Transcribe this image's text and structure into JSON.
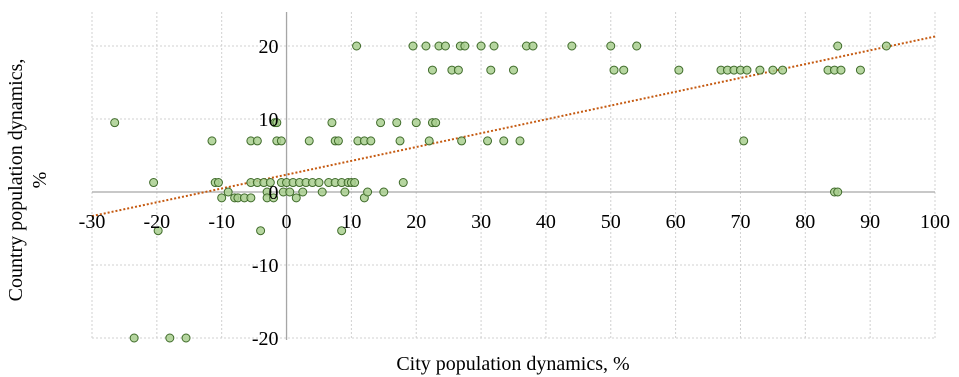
{
  "chart_data": {
    "type": "scatter",
    "title": "",
    "xlabel": "City population dynamics, %",
    "ylabel": "Country population dynamics, %",
    "xlim": [
      -30,
      100
    ],
    "ylim": [
      -20,
      25
    ],
    "x_ticks": [
      "-30",
      "-20",
      "-10",
      "0",
      "10",
      "20",
      "30",
      "40",
      "50",
      "60",
      "70",
      "80",
      "90",
      "100"
    ],
    "y_ticks": [
      "20",
      "10",
      "0",
      "-10",
      "-20"
    ],
    "grid": true,
    "marker_fill": "#a9cf8f",
    "marker_edge": "#3f6b2a",
    "trendline_color": "#c55a11",
    "series": [
      {
        "points": [
          [
            -26.5,
            9.5
          ],
          [
            -20.5,
            1.3
          ],
          [
            -19.8,
            -5.3
          ],
          [
            -23.5,
            -20.0
          ],
          [
            -18.0,
            -20.0
          ],
          [
            -15.5,
            -20.0
          ],
          [
            -11.5,
            7.0
          ],
          [
            -11.0,
            1.3
          ],
          [
            -10.5,
            1.3
          ],
          [
            -10.0,
            -0.8
          ],
          [
            -9.0,
            0.0
          ],
          [
            -8.0,
            -0.8
          ],
          [
            -7.5,
            -0.8
          ],
          [
            -6.5,
            -0.8
          ],
          [
            -5.5,
            -0.8
          ],
          [
            -5.5,
            7.0
          ],
          [
            -4.5,
            7.0
          ],
          [
            -5.5,
            1.3
          ],
          [
            -4.5,
            1.3
          ],
          [
            -4.0,
            -5.3
          ],
          [
            -3.5,
            1.3
          ],
          [
            -3.0,
            0.0
          ],
          [
            -3.0,
            -0.8
          ],
          [
            -2.5,
            1.3
          ],
          [
            -2.0,
            -0.8
          ],
          [
            -1.8,
            9.5
          ],
          [
            -1.5,
            9.5
          ],
          [
            -1.5,
            7.0
          ],
          [
            -0.8,
            7.0
          ],
          [
            -0.8,
            1.3
          ],
          [
            -0.5,
            0.0
          ],
          [
            0.0,
            1.3
          ],
          [
            0.5,
            0.0
          ],
          [
            1.0,
            1.3
          ],
          [
            1.5,
            -0.8
          ],
          [
            2.0,
            1.3
          ],
          [
            2.5,
            0.0
          ],
          [
            3.0,
            1.3
          ],
          [
            3.5,
            7.0
          ],
          [
            4.0,
            1.3
          ],
          [
            5.0,
            1.3
          ],
          [
            5.5,
            0.0
          ],
          [
            6.5,
            1.3
          ],
          [
            7.0,
            9.5
          ],
          [
            7.5,
            1.3
          ],
          [
            7.5,
            7.0
          ],
          [
            8.0,
            7.0
          ],
          [
            8.5,
            1.3
          ],
          [
            8.5,
            -5.3
          ],
          [
            9.0,
            0.0
          ],
          [
            9.5,
            1.3
          ],
          [
            10.0,
            1.3
          ],
          [
            10.5,
            1.3
          ],
          [
            10.8,
            20.0
          ],
          [
            11.0,
            7.0
          ],
          [
            12.0,
            7.0
          ],
          [
            12.0,
            -0.8
          ],
          [
            12.5,
            0.0
          ],
          [
            13.0,
            7.0
          ],
          [
            14.5,
            9.5
          ],
          [
            15.0,
            0.0
          ],
          [
            17.0,
            9.5
          ],
          [
            17.5,
            7.0
          ],
          [
            18.0,
            1.3
          ],
          [
            19.5,
            20.0
          ],
          [
            20.0,
            9.5
          ],
          [
            21.5,
            20.0
          ],
          [
            22.0,
            7.0
          ],
          [
            22.5,
            16.7
          ],
          [
            22.5,
            9.5
          ],
          [
            23.0,
            9.5
          ],
          [
            23.5,
            20.0
          ],
          [
            24.5,
            20.0
          ],
          [
            25.5,
            16.7
          ],
          [
            26.5,
            16.7
          ],
          [
            26.8,
            20.0
          ],
          [
            27.0,
            7.0
          ],
          [
            27.5,
            20.0
          ],
          [
            30.0,
            20.0
          ],
          [
            31.0,
            7.0
          ],
          [
            31.5,
            16.7
          ],
          [
            32.0,
            20.0
          ],
          [
            33.5,
            7.0
          ],
          [
            35.0,
            16.7
          ],
          [
            36.0,
            7.0
          ],
          [
            37.0,
            20.0
          ],
          [
            38.0,
            20.0
          ],
          [
            44.0,
            20.0
          ],
          [
            50.0,
            20.0
          ],
          [
            50.5,
            16.7
          ],
          [
            52.0,
            16.7
          ],
          [
            54.0,
            20.0
          ],
          [
            60.5,
            16.7
          ],
          [
            67.0,
            16.7
          ],
          [
            68.0,
            16.7
          ],
          [
            69.0,
            16.7
          ],
          [
            70.0,
            16.7
          ],
          [
            70.5,
            7.0
          ],
          [
            71.0,
            16.7
          ],
          [
            73.0,
            16.7
          ],
          [
            75.0,
            16.7
          ],
          [
            76.5,
            16.7
          ],
          [
            83.5,
            16.7
          ],
          [
            84.5,
            16.7
          ],
          [
            84.5,
            0.0
          ],
          [
            85.0,
            0.0
          ],
          [
            85.0,
            20.0
          ],
          [
            85.5,
            16.7
          ],
          [
            88.5,
            16.7
          ],
          [
            92.5,
            20.0
          ]
        ]
      }
    ],
    "trendline": {
      "type": "linear",
      "x": [
        -30,
        100
      ],
      "y": [
        -3.3,
        21.3
      ]
    }
  }
}
